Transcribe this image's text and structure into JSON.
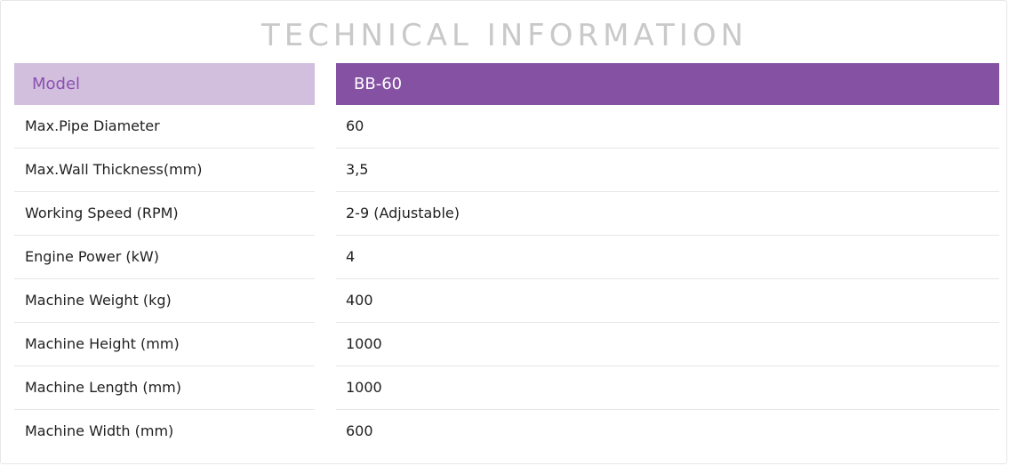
{
  "title": "TECHNICAL INFORMATION",
  "colors": {
    "header_left_bg": "#d2bfde",
    "header_left_text": "#8c4fb0",
    "header_right_bg": "#8451a3",
    "header_right_text": "#ffffff",
    "title_text": "#c9c9c9"
  },
  "table": {
    "header": {
      "label": "Model",
      "value": "BB-60"
    },
    "rows": [
      {
        "label": "Max.Pipe Diameter",
        "value": "60"
      },
      {
        "label": "Max.Wall Thickness(mm)",
        "value": "3,5"
      },
      {
        "label": "Working Speed (RPM)",
        "value": "2-9 (Adjustable)"
      },
      {
        "label": "Engine Power (kW)",
        "value": "4"
      },
      {
        "label": "Machine Weight (kg)",
        "value": "400"
      },
      {
        "label": "Machine Height (mm)",
        "value": "1000"
      },
      {
        "label": "Machine Length (mm)",
        "value": "1000"
      },
      {
        "label": "Machine Width (mm)",
        "value": "600"
      }
    ]
  }
}
